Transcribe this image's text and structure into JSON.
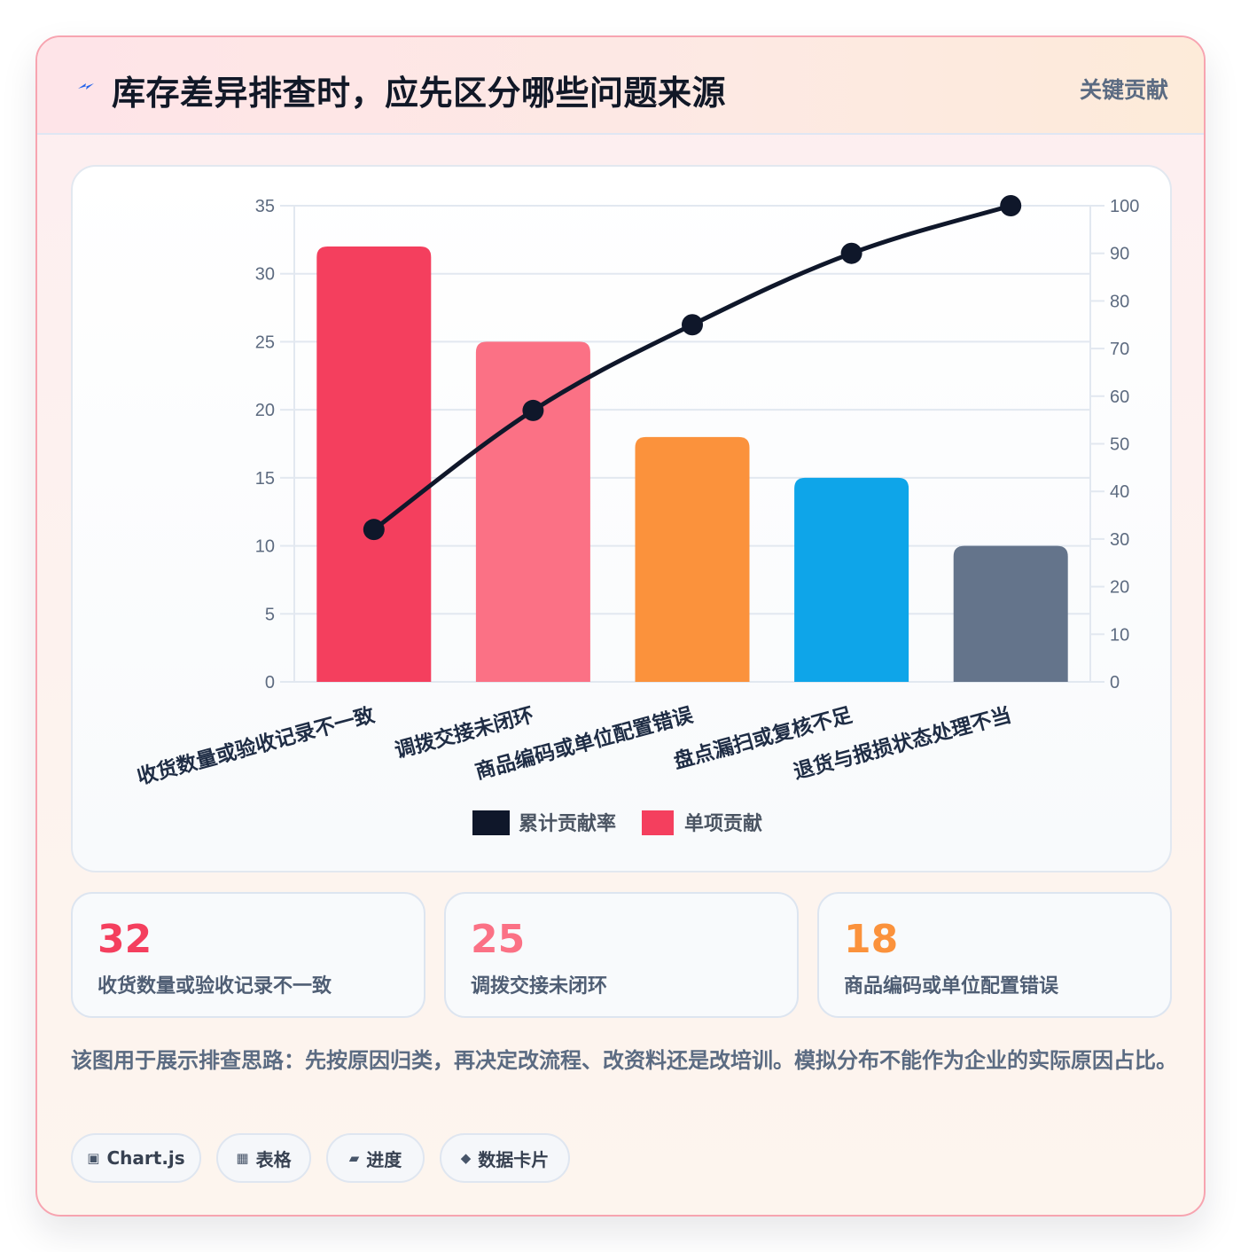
{
  "header": {
    "title": "库存差异排查时，应先区分哪些问题来源",
    "badge": "关键贡献",
    "icon": "lightning-icon"
  },
  "chart_data": {
    "type": "bar",
    "categories": [
      "收货数量或验收记录不一致",
      "调拨交接未闭环",
      "商品编码或单位配置错误",
      "盘点漏扫或复核不足",
      "退货与报损状态处理不当"
    ],
    "series": [
      {
        "name": "单项贡献",
        "type": "bar",
        "axis": "left",
        "values": [
          32,
          25,
          18,
          15,
          10
        ],
        "colors": [
          "#f43f5e",
          "#fb7185",
          "#fb923c",
          "#0ea5e9",
          "#64748b"
        ]
      },
      {
        "name": "累计贡献率",
        "type": "line",
        "axis": "right",
        "values": [
          32,
          57,
          75,
          90,
          100
        ],
        "color": "#0f172a"
      }
    ],
    "y_left": {
      "min": 0,
      "max": 35,
      "step": 5,
      "ticks": [
        "0",
        "5",
        "10",
        "15",
        "20",
        "25",
        "30",
        "35"
      ]
    },
    "y_right": {
      "min": 0,
      "max": 100,
      "step": 10,
      "ticks": [
        "0",
        "10",
        "20",
        "30",
        "40",
        "50",
        "60",
        "70",
        "80",
        "90",
        "100"
      ]
    },
    "legend": {
      "position": "bottom",
      "items": [
        "累计贡献率",
        "单项贡献"
      ]
    },
    "grid": true
  },
  "stats": [
    {
      "value": "32",
      "label": "收货数量或验收记录不一致",
      "color": "#f43f5e"
    },
    {
      "value": "25",
      "label": "调拨交接未闭环",
      "color": "#fb7185"
    },
    {
      "value": "18",
      "label": "商品编码或单位配置错误",
      "color": "#fb923c"
    }
  ],
  "note": "该图用于展示排查思路：先按原因归类，再决定改流程、改资料还是改培训。模拟分布不能作为企业的实际原因占比。",
  "chips": [
    {
      "icon": "▣",
      "label": "Chart.js"
    },
    {
      "icon": "▦",
      "label": "表格"
    },
    {
      "icon": "▰",
      "label": "进度"
    },
    {
      "icon": "◆",
      "label": "数据卡片"
    }
  ]
}
